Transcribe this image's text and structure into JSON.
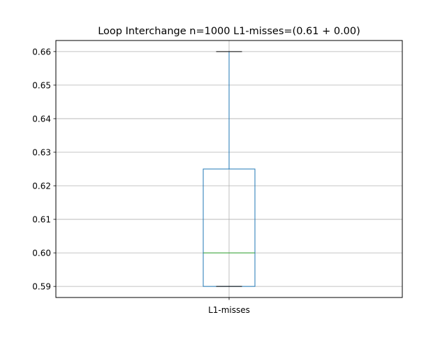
{
  "chart_data": {
    "type": "box",
    "title": "Loop Interchange n=1000  L1-misses=(0.61 + 0.00)",
    "xlabel": "",
    "ylabel": "",
    "categories": [
      "L1-misses"
    ],
    "ylim": [
      0.5867,
      0.6633
    ],
    "yticks": [
      0.59,
      0.6,
      0.61,
      0.62,
      0.63,
      0.64,
      0.65,
      0.66
    ],
    "ytick_labels": [
      "0.59",
      "0.60",
      "0.61",
      "0.62",
      "0.63",
      "0.64",
      "0.65",
      "0.66"
    ],
    "grid": true,
    "boxes": [
      {
        "label": "L1-misses",
        "whisker_low": 0.59,
        "q1": 0.59,
        "median": 0.6,
        "q3": 0.625,
        "whisker_high": 0.66
      }
    ],
    "colors": {
      "box": "#1f77b4",
      "median": "#2ca02c",
      "whisker": "#1f77b4",
      "cap": "#000000",
      "grid": "#b0b0b0",
      "axes": "#000000"
    }
  }
}
